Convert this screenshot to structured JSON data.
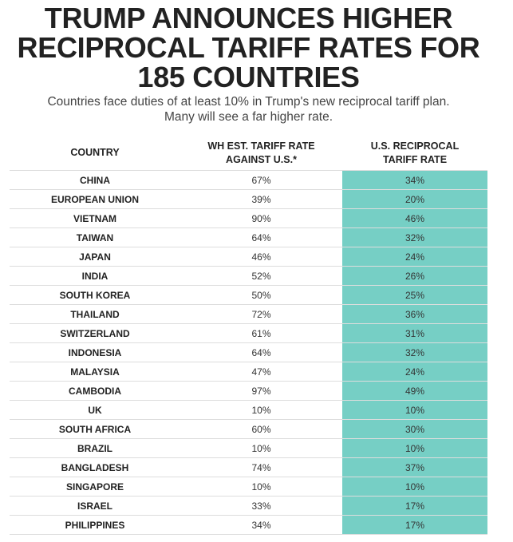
{
  "header": {
    "title_line1": "TRUMP ANNOUNCES HIGHER",
    "title_line2": "RECIPROCAL TARIFF RATES FOR",
    "title_line3": "185 COUNTRIES",
    "subtitle_line1": "Countries face duties of at least 10% in Trump's new reciprocal tariff plan.",
    "subtitle_line2": "Many will see a far higher rate."
  },
  "colors": {
    "highlight": "#76cfc5",
    "text": "#222222",
    "rule": "#dddddd"
  },
  "chart_data": {
    "type": "table",
    "columns": {
      "country": "COUNTRY",
      "wh_line1": "WH EST. TARIFF RATE",
      "wh_line2": "AGAINST U.S.*",
      "us_line1": "U.S. RECIPROCAL",
      "us_line2": "TARIFF RATE"
    },
    "rows": [
      {
        "country": "CHINA",
        "wh": "67%",
        "us": "34%"
      },
      {
        "country": "EUROPEAN UNION",
        "wh": "39%",
        "us": "20%"
      },
      {
        "country": "VIETNAM",
        "wh": "90%",
        "us": "46%"
      },
      {
        "country": "TAIWAN",
        "wh": "64%",
        "us": "32%"
      },
      {
        "country": "JAPAN",
        "wh": "46%",
        "us": "24%"
      },
      {
        "country": "INDIA",
        "wh": "52%",
        "us": "26%"
      },
      {
        "country": "SOUTH KOREA",
        "wh": "50%",
        "us": "25%"
      },
      {
        "country": "THAILAND",
        "wh": "72%",
        "us": "36%"
      },
      {
        "country": "SWITZERLAND",
        "wh": "61%",
        "us": "31%"
      },
      {
        "country": "INDONESIA",
        "wh": "64%",
        "us": "32%"
      },
      {
        "country": "MALAYSIA",
        "wh": "47%",
        "us": "24%"
      },
      {
        "country": "CAMBODIA",
        "wh": "97%",
        "us": "49%"
      },
      {
        "country": "UK",
        "wh": "10%",
        "us": "10%"
      },
      {
        "country": "SOUTH AFRICA",
        "wh": "60%",
        "us": "30%"
      },
      {
        "country": "BRAZIL",
        "wh": "10%",
        "us": "10%"
      },
      {
        "country": "BANGLADESH",
        "wh": "74%",
        "us": "37%"
      },
      {
        "country": "SINGAPORE",
        "wh": "10%",
        "us": "10%"
      },
      {
        "country": "ISRAEL",
        "wh": "33%",
        "us": "17%"
      },
      {
        "country": "PHILIPPINES",
        "wh": "34%",
        "us": "17%"
      }
    ]
  }
}
